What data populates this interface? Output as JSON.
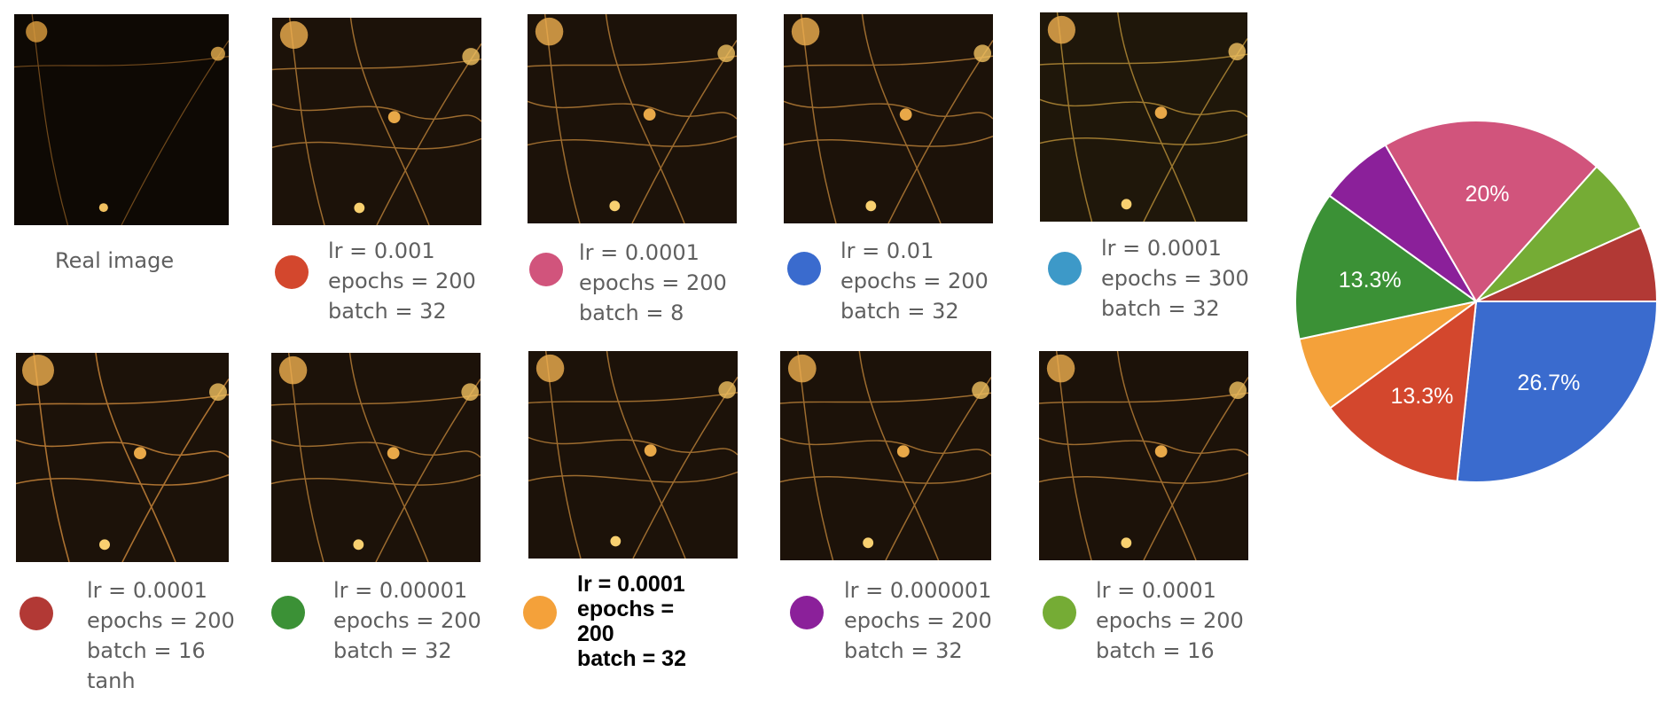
{
  "real_image_label": "Real image",
  "configs": [
    {
      "color": "#d3472d",
      "lines": [
        "lr = 0.001",
        "epochs = 200",
        "batch = 32"
      ]
    },
    {
      "color": "#d1547c",
      "lines": [
        "lr = 0.0001",
        "epochs = 200",
        "batch = 8"
      ]
    },
    {
      "color": "#3a6bce",
      "lines": [
        "lr = 0.01",
        "epochs = 200",
        "batch = 32"
      ]
    },
    {
      "color": "#3d99c8",
      "lines": [
        "lr = 0.0001",
        "epochs = 300",
        "batch = 32"
      ]
    },
    {
      "color": "#b23935",
      "lines": [
        "lr = 0.0001",
        "epochs = 200",
        "batch = 16",
        "tanh"
      ]
    },
    {
      "color": "#3b9136",
      "lines": [
        "lr = 0.00001",
        "epochs = 200",
        "batch = 32"
      ]
    },
    {
      "color": "#f4a13a",
      "lines": [
        "lr = 0.0001",
        "epochs =",
        "200",
        "batch = 32"
      ],
      "bold": true
    },
    {
      "color": "#8b209a",
      "lines": [
        "lr = 0.000001",
        "epochs = 200",
        "batch = 32"
      ]
    },
    {
      "color": "#75ac35",
      "lines": [
        "lr = 0.0001",
        "epochs = 200",
        "batch = 16"
      ]
    }
  ],
  "chart_data": {
    "type": "pie",
    "title": "",
    "slices": [
      {
        "value": 26.7,
        "label": "26.7%",
        "color": "#3a6bce"
      },
      {
        "value": 13.3,
        "label": "13.3%",
        "color": "#d3472d"
      },
      {
        "value": 6.7,
        "label": "",
        "color": "#f4a13a"
      },
      {
        "value": 13.3,
        "label": "13.3%",
        "color": "#3b9136"
      },
      {
        "value": 6.7,
        "label": "",
        "color": "#8b209a"
      },
      {
        "value": 20,
        "label": "20%",
        "color": "#d1547c"
      },
      {
        "value": 6.7,
        "label": "",
        "color": "#75ac35"
      },
      {
        "value": 6.7,
        "label": "",
        "color": "#b23935"
      }
    ]
  }
}
